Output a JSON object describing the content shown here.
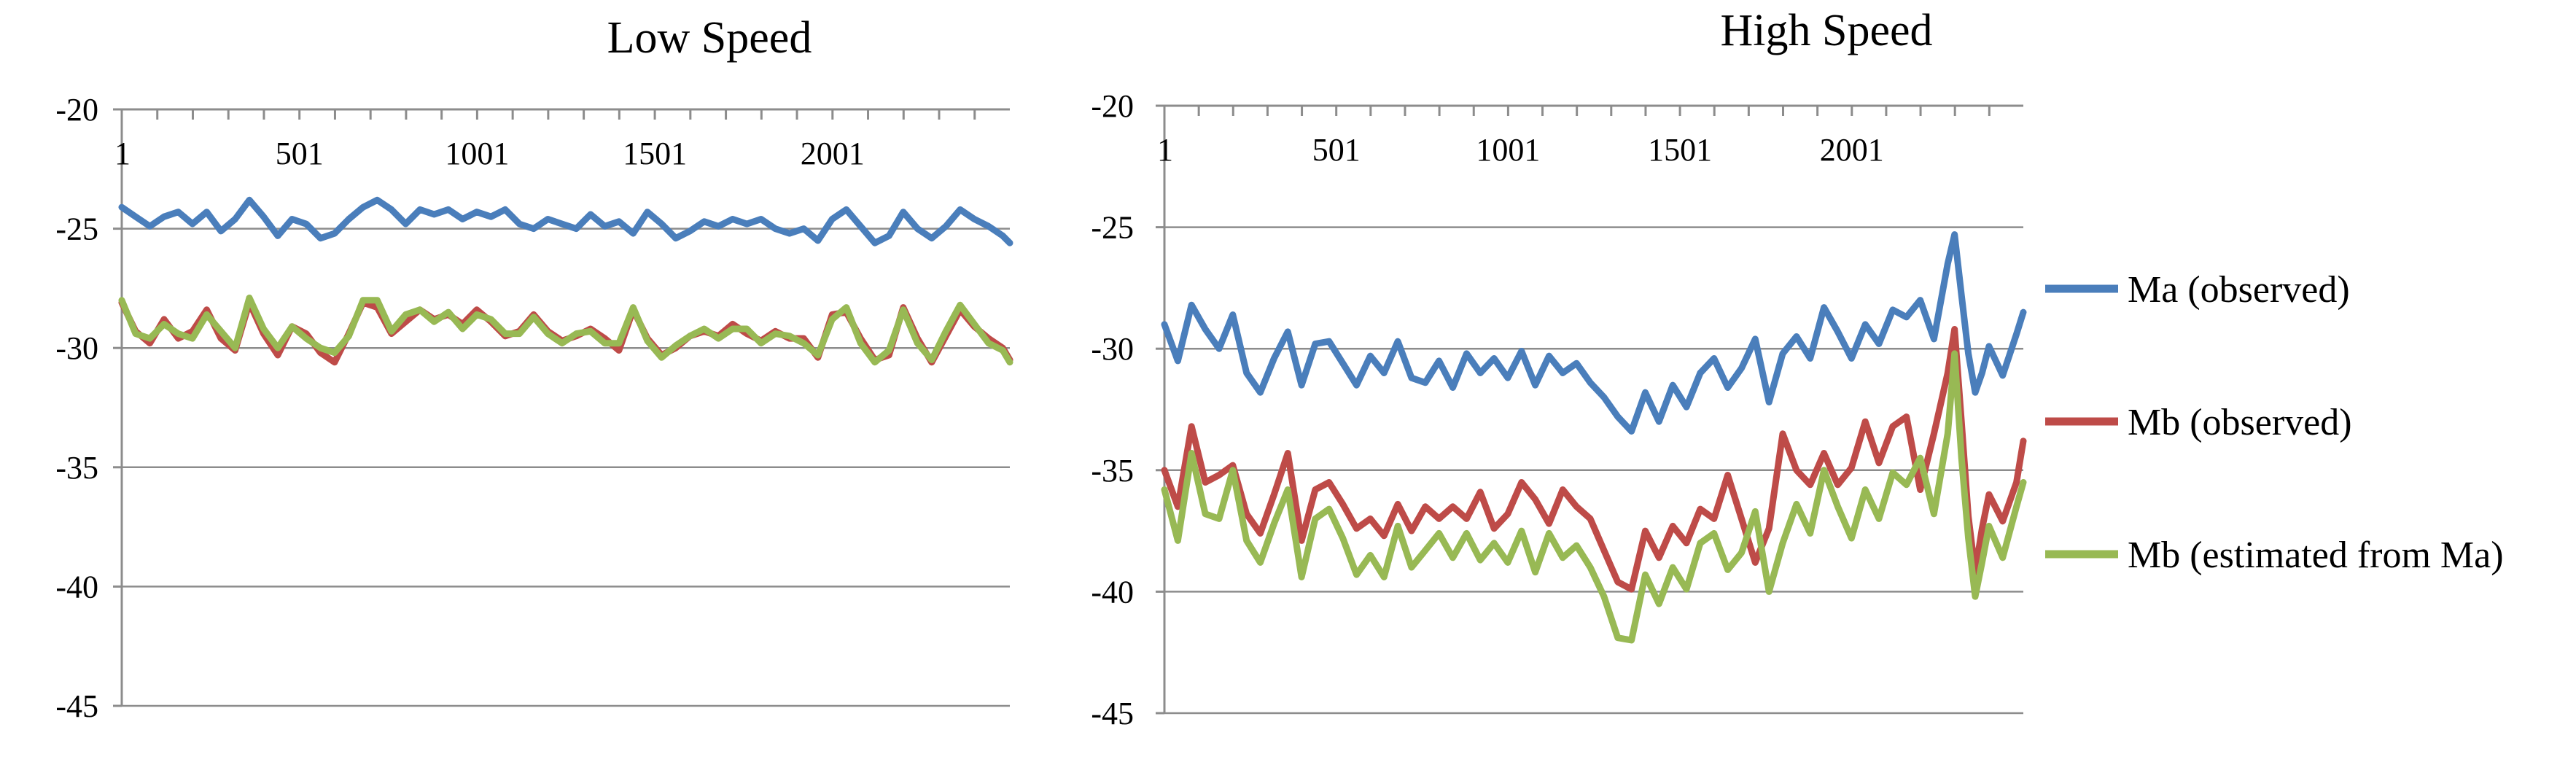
{
  "colors": {
    "ma": "#4a7ebb",
    "mb_obs": "#be4b48",
    "mb_est": "#98b954"
  },
  "legend": {
    "items": [
      {
        "key": "ma",
        "label": "Ma (observed)"
      },
      {
        "key": "mb_obs",
        "label": "Mb (observed)"
      },
      {
        "key": "mb_est",
        "label": "Mb (estimated from Ma)"
      }
    ]
  },
  "chart_data": [
    {
      "type": "line",
      "title": "Low Speed",
      "xlabel": "",
      "ylabel": "",
      "ylim": [
        -45,
        -20
      ],
      "yticks": [
        -20,
        -25,
        -30,
        -35,
        -40,
        -45
      ],
      "xlim": [
        1,
        2500
      ],
      "xticks": [
        1,
        501,
        1001,
        1501,
        2001
      ],
      "grid": true,
      "series": [
        {
          "key": "ma",
          "name": "Ma (observed)",
          "x": [
            1,
            40,
            80,
            120,
            160,
            200,
            240,
            280,
            320,
            360,
            400,
            440,
            480,
            520,
            560,
            600,
            640,
            680,
            720,
            760,
            800,
            840,
            880,
            920,
            960,
            1000,
            1040,
            1080,
            1120,
            1160,
            1200,
            1240,
            1280,
            1320,
            1360,
            1400,
            1440,
            1480,
            1520,
            1560,
            1600,
            1640,
            1680,
            1720,
            1760,
            1800,
            1840,
            1880,
            1920,
            1960,
            2000,
            2040,
            2080,
            2120,
            2160,
            2200,
            2240,
            2280,
            2320,
            2360,
            2400,
            2440,
            2480,
            2500
          ],
          "y": [
            -24.1,
            -24.5,
            -24.9,
            -24.5,
            -24.3,
            -24.8,
            -24.3,
            -25.1,
            -24.6,
            -23.8,
            -24.5,
            -25.3,
            -24.6,
            -24.8,
            -25.4,
            -25.2,
            -24.6,
            -24.1,
            -23.8,
            -24.2,
            -24.8,
            -24.2,
            -24.4,
            -24.2,
            -24.6,
            -24.3,
            -24.5,
            -24.2,
            -24.8,
            -25.0,
            -24.6,
            -24.8,
            -25.0,
            -24.4,
            -24.9,
            -24.7,
            -25.2,
            -24.3,
            -24.8,
            -25.4,
            -25.1,
            -24.7,
            -24.9,
            -24.6,
            -24.8,
            -24.6,
            -25.0,
            -25.2,
            -25.0,
            -25.5,
            -24.6,
            -24.2,
            -24.9,
            -25.6,
            -25.3,
            -24.3,
            -25.0,
            -25.4,
            -24.9,
            -24.2,
            -24.6,
            -24.9,
            -25.3,
            -25.6
          ]
        },
        {
          "key": "mb_obs",
          "name": "Mb (observed)",
          "x": [
            1,
            40,
            80,
            120,
            160,
            200,
            240,
            280,
            320,
            360,
            400,
            440,
            480,
            520,
            560,
            600,
            640,
            680,
            720,
            760,
            800,
            840,
            880,
            920,
            960,
            1000,
            1040,
            1080,
            1120,
            1160,
            1200,
            1240,
            1280,
            1320,
            1360,
            1400,
            1440,
            1480,
            1520,
            1560,
            1600,
            1640,
            1680,
            1720,
            1760,
            1800,
            1840,
            1880,
            1920,
            1960,
            2000,
            2040,
            2080,
            2120,
            2160,
            2200,
            2240,
            2280,
            2320,
            2360,
            2400,
            2440,
            2480,
            2500
          ],
          "y": [
            -28.1,
            -29.3,
            -29.8,
            -28.8,
            -29.6,
            -29.3,
            -28.4,
            -29.6,
            -30.1,
            -28.1,
            -29.4,
            -30.3,
            -29.1,
            -29.4,
            -30.2,
            -30.6,
            -29.4,
            -28.1,
            -28.3,
            -29.4,
            -28.9,
            -28.4,
            -28.8,
            -28.6,
            -29.0,
            -28.4,
            -28.9,
            -29.5,
            -29.3,
            -28.6,
            -29.3,
            -29.7,
            -29.5,
            -29.2,
            -29.6,
            -30.1,
            -28.4,
            -29.6,
            -30.3,
            -30.0,
            -29.5,
            -29.3,
            -29.5,
            -29.0,
            -29.4,
            -29.7,
            -29.3,
            -29.6,
            -29.6,
            -30.4,
            -28.6,
            -28.5,
            -29.6,
            -30.5,
            -30.3,
            -28.3,
            -29.6,
            -30.6,
            -29.5,
            -28.4,
            -29.1,
            -29.6,
            -30.0,
            -30.5
          ]
        },
        {
          "key": "mb_est",
          "name": "Mb (estimated from Ma)",
          "x": [
            1,
            40,
            80,
            120,
            160,
            200,
            240,
            280,
            320,
            360,
            400,
            440,
            480,
            520,
            560,
            600,
            640,
            680,
            720,
            760,
            800,
            840,
            880,
            920,
            960,
            1000,
            1040,
            1080,
            1120,
            1160,
            1200,
            1240,
            1280,
            1320,
            1360,
            1400,
            1440,
            1480,
            1520,
            1560,
            1600,
            1640,
            1680,
            1720,
            1760,
            1800,
            1840,
            1880,
            1920,
            1960,
            2000,
            2040,
            2080,
            2120,
            2160,
            2200,
            2240,
            2280,
            2320,
            2360,
            2400,
            2440,
            2480,
            2500
          ],
          "y": [
            -28.0,
            -29.4,
            -29.6,
            -29.0,
            -29.4,
            -29.6,
            -28.6,
            -29.3,
            -30.0,
            -27.9,
            -29.2,
            -30.0,
            -29.1,
            -29.6,
            -30.0,
            -30.2,
            -29.5,
            -28.0,
            -28.0,
            -29.3,
            -28.6,
            -28.4,
            -28.9,
            -28.5,
            -29.2,
            -28.6,
            -28.8,
            -29.4,
            -29.4,
            -28.7,
            -29.4,
            -29.8,
            -29.4,
            -29.3,
            -29.8,
            -29.8,
            -28.3,
            -29.7,
            -30.4,
            -29.9,
            -29.5,
            -29.2,
            -29.6,
            -29.2,
            -29.2,
            -29.8,
            -29.4,
            -29.5,
            -29.8,
            -30.3,
            -28.8,
            -28.3,
            -29.8,
            -30.6,
            -30.1,
            -28.4,
            -29.8,
            -30.5,
            -29.3,
            -28.2,
            -29.0,
            -29.8,
            -30.1,
            -30.6
          ]
        }
      ]
    },
    {
      "type": "line",
      "title": "High Speed",
      "xlabel": "",
      "ylabel": "",
      "ylim": [
        -45,
        -20
      ],
      "yticks": [
        -20,
        -25,
        -30,
        -35,
        -40,
        -45
      ],
      "xlim": [
        1,
        2500
      ],
      "xticks": [
        1,
        501,
        1001,
        1501,
        2001
      ],
      "grid": true,
      "series": [
        {
          "key": "ma",
          "name": "Ma (observed)",
          "x": [
            1,
            40,
            80,
            120,
            160,
            200,
            240,
            280,
            320,
            360,
            400,
            440,
            480,
            520,
            560,
            600,
            640,
            680,
            720,
            760,
            800,
            840,
            880,
            920,
            960,
            1000,
            1040,
            1080,
            1120,
            1160,
            1200,
            1240,
            1280,
            1320,
            1360,
            1400,
            1440,
            1480,
            1520,
            1560,
            1600,
            1640,
            1680,
            1720,
            1760,
            1800,
            1840,
            1880,
            1920,
            1960,
            2000,
            2040,
            2080,
            2120,
            2160,
            2200,
            2240,
            2280,
            2300,
            2320,
            2340,
            2360,
            2380,
            2400,
            2440,
            2480,
            2500
          ],
          "y": [
            -29.0,
            -30.5,
            -28.2,
            -29.2,
            -30.0,
            -28.6,
            -31.0,
            -31.8,
            -30.4,
            -29.3,
            -31.5,
            -29.8,
            -29.7,
            -30.6,
            -31.5,
            -30.3,
            -31.0,
            -29.7,
            -31.2,
            -31.4,
            -30.5,
            -31.6,
            -30.2,
            -31.0,
            -30.4,
            -31.2,
            -30.1,
            -31.5,
            -30.3,
            -31.0,
            -30.6,
            -31.4,
            -32.0,
            -32.8,
            -33.4,
            -31.8,
            -33.0,
            -31.5,
            -32.4,
            -31.0,
            -30.4,
            -31.6,
            -30.8,
            -29.6,
            -32.2,
            -30.2,
            -29.5,
            -30.4,
            -28.3,
            -29.3,
            -30.4,
            -29.0,
            -29.8,
            -28.4,
            -28.7,
            -28.0,
            -29.6,
            -26.5,
            -25.3,
            -27.8,
            -30.2,
            -31.8,
            -31.0,
            -29.9,
            -31.1,
            -29.4,
            -28.5
          ]
        },
        {
          "key": "mb_obs",
          "name": "Mb (observed)",
          "x": [
            1,
            40,
            80,
            120,
            160,
            200,
            240,
            280,
            320,
            360,
            400,
            440,
            480,
            520,
            560,
            600,
            640,
            680,
            720,
            760,
            800,
            840,
            880,
            920,
            960,
            1000,
            1040,
            1080,
            1120,
            1160,
            1200,
            1240,
            1280,
            1320,
            1360,
            1400,
            1440,
            1480,
            1520,
            1560,
            1600,
            1640,
            1680,
            1720,
            1760,
            1800,
            1840,
            1880,
            1920,
            1960,
            2000,
            2040,
            2080,
            2120,
            2160,
            2200,
            2240,
            2280,
            2300,
            2320,
            2340,
            2360,
            2380,
            2400,
            2440,
            2480,
            2500
          ],
          "y": [
            -35.0,
            -36.5,
            -33.2,
            -35.5,
            -35.2,
            -34.8,
            -36.8,
            -37.6,
            -36.0,
            -34.3,
            -37.9,
            -35.8,
            -35.5,
            -36.4,
            -37.4,
            -37.0,
            -37.7,
            -36.4,
            -37.5,
            -36.5,
            -37.0,
            -36.5,
            -37.0,
            -35.9,
            -37.4,
            -36.8,
            -35.5,
            -36.2,
            -37.2,
            -35.8,
            -36.5,
            -37.0,
            -38.3,
            -39.6,
            -39.9,
            -37.5,
            -38.6,
            -37.3,
            -38.0,
            -36.6,
            -37.0,
            -35.2,
            -37.0,
            -38.8,
            -37.4,
            -33.5,
            -35.0,
            -35.6,
            -34.3,
            -35.6,
            -34.9,
            -33.0,
            -34.7,
            -33.2,
            -32.8,
            -35.8,
            -33.5,
            -31.0,
            -29.2,
            -33.0,
            -36.9,
            -39.2,
            -37.4,
            -36.0,
            -37.1,
            -35.5,
            -33.8
          ]
        },
        {
          "key": "mb_est",
          "name": "Mb (estimated from Ma)",
          "x": [
            1,
            40,
            80,
            120,
            160,
            200,
            240,
            280,
            320,
            360,
            400,
            440,
            480,
            520,
            560,
            600,
            640,
            680,
            720,
            760,
            800,
            840,
            880,
            920,
            960,
            1000,
            1040,
            1080,
            1120,
            1160,
            1200,
            1240,
            1280,
            1320,
            1360,
            1400,
            1440,
            1480,
            1520,
            1560,
            1600,
            1640,
            1680,
            1720,
            1760,
            1800,
            1840,
            1880,
            1920,
            1960,
            2000,
            2040,
            2080,
            2120,
            2160,
            2200,
            2240,
            2280,
            2300,
            2320,
            2340,
            2360,
            2380,
            2400,
            2440,
            2480,
            2500
          ],
          "y": [
            -35.8,
            -37.9,
            -34.3,
            -36.8,
            -37.0,
            -35.0,
            -37.9,
            -38.8,
            -37.2,
            -35.8,
            -39.4,
            -37.0,
            -36.6,
            -37.8,
            -39.3,
            -38.5,
            -39.4,
            -37.3,
            -39.0,
            -38.3,
            -37.6,
            -38.6,
            -37.6,
            -38.7,
            -38.0,
            -38.8,
            -37.5,
            -39.2,
            -37.6,
            -38.6,
            -38.1,
            -39.0,
            -40.2,
            -41.9,
            -42.0,
            -39.3,
            -40.5,
            -39.0,
            -39.9,
            -38.0,
            -37.6,
            -39.1,
            -38.4,
            -36.7,
            -40.0,
            -38.0,
            -36.4,
            -37.6,
            -35.0,
            -36.5,
            -37.8,
            -35.8,
            -37.0,
            -35.1,
            -35.6,
            -34.5,
            -36.8,
            -33.5,
            -30.2,
            -34.5,
            -37.8,
            -40.2,
            -38.8,
            -37.3,
            -38.6,
            -36.5,
            -35.5
          ]
        }
      ]
    }
  ]
}
